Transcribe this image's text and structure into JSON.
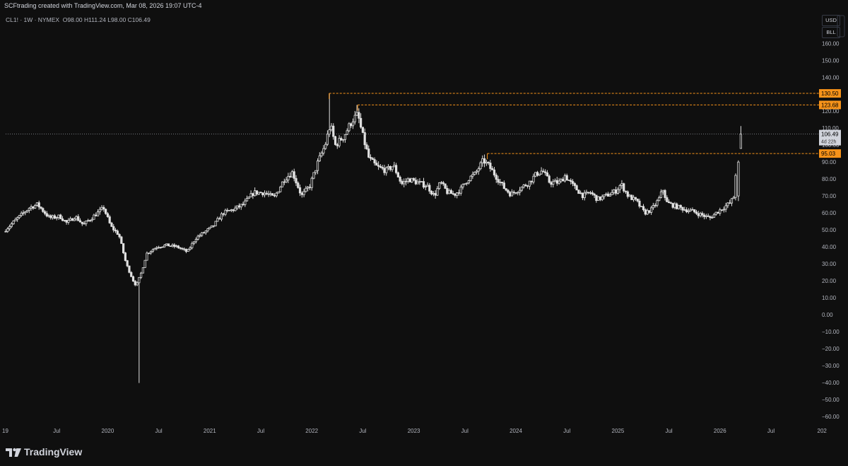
{
  "header": {
    "attribution": "SCFtrading created with TradingView.com, Mar 08, 2026 19:07 UTC-4"
  },
  "legend": {
    "symbol": "CL1! · 1W · NYMEX",
    "open": "O98.00",
    "high": "H111.24",
    "low": "L98.00",
    "close": "C106.49"
  },
  "controls": {
    "currency": "USD",
    "unit": "BLL"
  },
  "footer": {
    "brand": "TradingView"
  },
  "colors": {
    "background": "#0f0f0f",
    "candle": "#e0e0e0",
    "level": "#f7931a",
    "last_price_line": "#9598a1"
  },
  "icons": [
    "tradingview-logo-icon",
    "axis-menu-icon"
  ],
  "chart_data": {
    "type": "candlestick",
    "instrument": "CL1!",
    "interval": "1W",
    "exchange": "NYMEX",
    "ylim": [
      -67,
      172
    ],
    "y_ticks": [
      160,
      150,
      140,
      130,
      120,
      110,
      100,
      90,
      80,
      70,
      60,
      50,
      40,
      30,
      20,
      10,
      0,
      -10,
      -20,
      -30,
      -40,
      -50,
      -60
    ],
    "x_ticks": [
      {
        "label": "19",
        "t": 2019.0
      },
      {
        "label": "Jul",
        "t": 2019.5
      },
      {
        "label": "2020",
        "t": 2020.0
      },
      {
        "label": "Jul",
        "t": 2020.5
      },
      {
        "label": "2021",
        "t": 2021.0
      },
      {
        "label": "Jul",
        "t": 2021.5
      },
      {
        "label": "2022",
        "t": 2022.0
      },
      {
        "label": "Jul",
        "t": 2022.5
      },
      {
        "label": "2023",
        "t": 2023.0
      },
      {
        "label": "Jul",
        "t": 2023.5
      },
      {
        "label": "2024",
        "t": 2024.0
      },
      {
        "label": "Jul",
        "t": 2024.5
      },
      {
        "label": "2025",
        "t": 2025.0
      },
      {
        "label": "Jul",
        "t": 2025.5
      },
      {
        "label": "2026",
        "t": 2026.0
      },
      {
        "label": "Jul",
        "t": 2026.5
      },
      {
        "label": "202",
        "t": 2027.0
      }
    ],
    "xlim": [
      2019.0,
      2027.0
    ],
    "last_price": {
      "value": 106.49,
      "label": "106.49",
      "countdown": "4d 22h"
    },
    "levels": [
      {
        "value": 130.5,
        "label": "130.50",
        "from_t": 2022.17
      },
      {
        "value": 123.68,
        "label": "123.68",
        "from_t": 2022.45
      },
      {
        "value": 95.03,
        "label": "95.03",
        "from_t": 2023.72
      }
    ],
    "price_path": [
      [
        2019.0,
        49
      ],
      [
        2019.12,
        56
      ],
      [
        2019.25,
        63
      ],
      [
        2019.33,
        65
      ],
      [
        2019.45,
        57
      ],
      [
        2019.55,
        58
      ],
      [
        2019.62,
        54
      ],
      [
        2019.7,
        58
      ],
      [
        2019.78,
        53
      ],
      [
        2019.88,
        58
      ],
      [
        2019.98,
        63
      ],
      [
        2020.05,
        52
      ],
      [
        2020.13,
        47
      ],
      [
        2020.2,
        30
      ],
      [
        2020.27,
        20
      ],
      [
        2020.3,
        17
      ],
      [
        2020.35,
        25
      ],
      [
        2020.4,
        36
      ],
      [
        2020.5,
        40
      ],
      [
        2020.6,
        41
      ],
      [
        2020.7,
        40
      ],
      [
        2020.8,
        37
      ],
      [
        2020.88,
        45
      ],
      [
        2020.95,
        48
      ],
      [
        2021.05,
        52
      ],
      [
        2021.15,
        60
      ],
      [
        2021.25,
        62
      ],
      [
        2021.35,
        65
      ],
      [
        2021.45,
        72
      ],
      [
        2021.55,
        72
      ],
      [
        2021.65,
        69
      ],
      [
        2021.75,
        80
      ],
      [
        2021.83,
        84
      ],
      [
        2021.92,
        70
      ],
      [
        2022.0,
        76
      ],
      [
        2022.08,
        90
      ],
      [
        2022.15,
        100
      ],
      [
        2022.2,
        112
      ],
      [
        2022.25,
        100
      ],
      [
        2022.33,
        105
      ],
      [
        2022.42,
        115
      ],
      [
        2022.47,
        118
      ],
      [
        2022.52,
        105
      ],
      [
        2022.58,
        92
      ],
      [
        2022.66,
        87
      ],
      [
        2022.75,
        85
      ],
      [
        2022.82,
        88
      ],
      [
        2022.9,
        77
      ],
      [
        2022.97,
        80
      ],
      [
        2023.05,
        78
      ],
      [
        2023.15,
        76
      ],
      [
        2023.22,
        70
      ],
      [
        2023.28,
        78
      ],
      [
        2023.35,
        72
      ],
      [
        2023.42,
        71
      ],
      [
        2023.48,
        74
      ],
      [
        2023.55,
        80
      ],
      [
        2023.62,
        83
      ],
      [
        2023.7,
        91
      ],
      [
        2023.75,
        88
      ],
      [
        2023.82,
        82
      ],
      [
        2023.9,
        75
      ],
      [
        2023.97,
        71
      ],
      [
        2024.05,
        74
      ],
      [
        2024.15,
        78
      ],
      [
        2024.22,
        83
      ],
      [
        2024.28,
        85
      ],
      [
        2024.35,
        78
      ],
      [
        2024.45,
        78
      ],
      [
        2024.5,
        82
      ],
      [
        2024.58,
        76
      ],
      [
        2024.68,
        70
      ],
      [
        2024.75,
        72
      ],
      [
        2024.82,
        68
      ],
      [
        2024.9,
        70
      ],
      [
        2025.0,
        73
      ],
      [
        2025.05,
        77
      ],
      [
        2025.12,
        70
      ],
      [
        2025.2,
        67
      ],
      [
        2025.28,
        60
      ],
      [
        2025.35,
        62
      ],
      [
        2025.42,
        68
      ],
      [
        2025.46,
        74
      ],
      [
        2025.5,
        66
      ],
      [
        2025.58,
        64
      ],
      [
        2025.68,
        62
      ],
      [
        2025.75,
        61
      ],
      [
        2025.83,
        59
      ],
      [
        2025.92,
        57
      ],
      [
        2025.98,
        60
      ],
      [
        2026.05,
        63
      ],
      [
        2026.12,
        66
      ],
      [
        2026.16,
        70
      ],
      [
        2026.18,
        90
      ],
      [
        2026.2,
        106.49
      ]
    ],
    "extremes": [
      {
        "t": 2020.31,
        "low": -40.32
      },
      {
        "t": 2022.18,
        "high": 130.5
      },
      {
        "t": 2022.45,
        "high": 123.68
      },
      {
        "t": 2026.205,
        "open": 98.0,
        "high": 111.24,
        "low": 98.0,
        "close": 106.49
      }
    ]
  }
}
